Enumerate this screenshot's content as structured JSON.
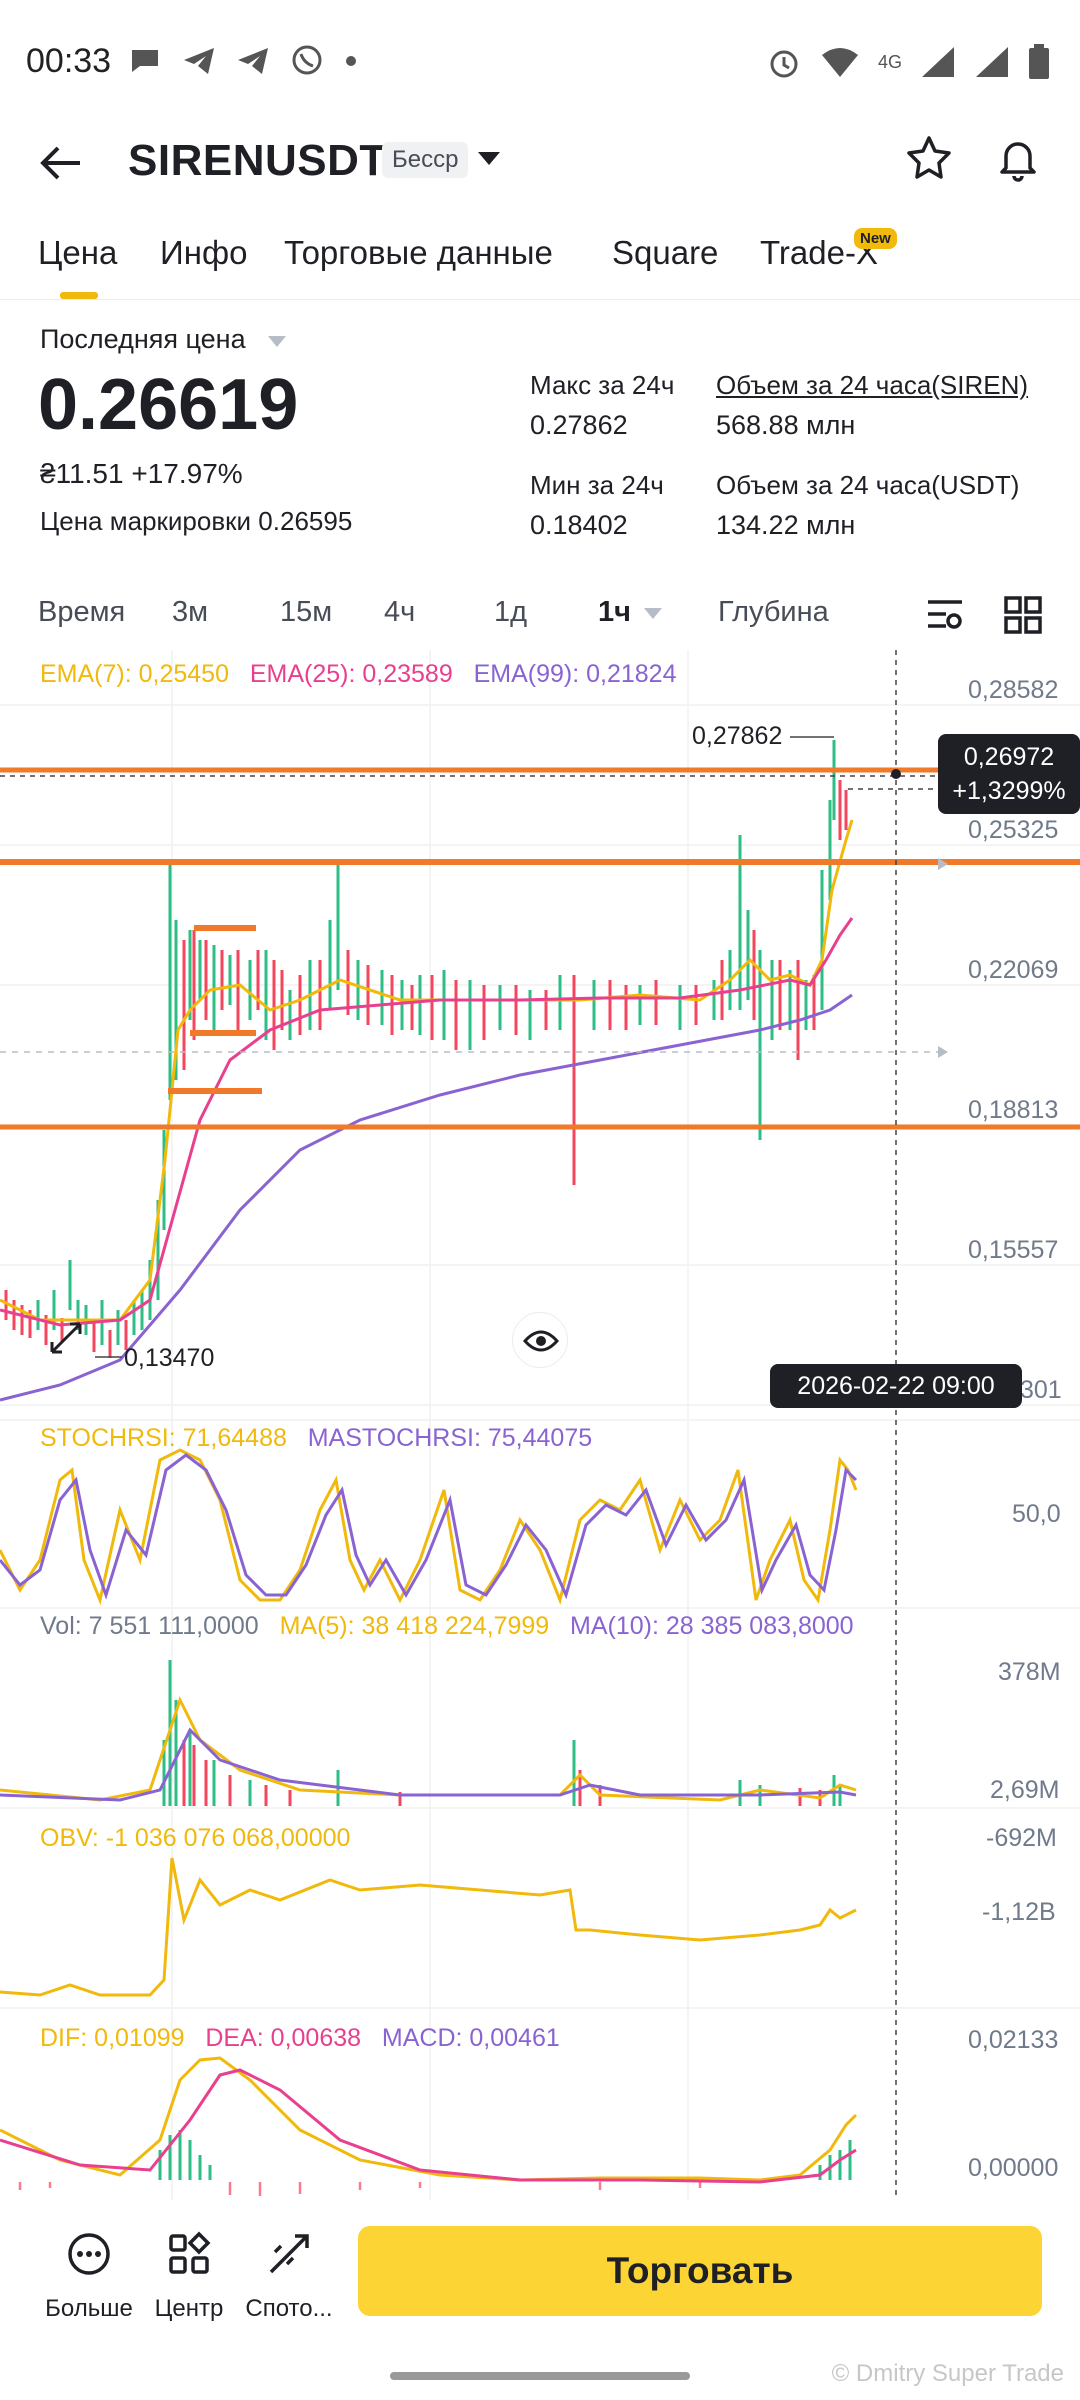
{
  "status_bar": {
    "time": "00:33",
    "network": "4G"
  },
  "header": {
    "pair": "SIRENUSDT",
    "badge": "Бесср"
  },
  "tabs": [
    {
      "label": "Цена"
    },
    {
      "label": "Инфо"
    },
    {
      "label": "Торговые данные"
    },
    {
      "label": "Square"
    },
    {
      "label": "Trade-X"
    }
  ],
  "tab_new_badge": "New",
  "price": {
    "last_label": "Последняя цена",
    "last_value": "0.26619",
    "sub_value": "₴11.51",
    "change": "+17.97%",
    "mark_label": "Цена маркировки",
    "mark_value": "0.26595"
  },
  "stats": {
    "high_label": "Макс за 24ч",
    "high_value": "0.27862",
    "low_label": "Мин за 24ч",
    "low_value": "0.18402",
    "vol_base_label": "Объем за 24 часа(SIREN)",
    "vol_base_value": "568.88 млн",
    "vol_quote_label": "Объем за 24 часа(USDT)",
    "vol_quote_value": "134.22 млн"
  },
  "intervals": {
    "time": "Время",
    "m3": "3м",
    "m15": "15м",
    "h4": "4ч",
    "d1": "1д",
    "selected": "1ч",
    "depth": "Глубина"
  },
  "chart": {
    "ema7": "EMA(7): 0,25450",
    "ema25": "EMA(25): 0,23589",
    "ema99": "EMA(99): 0,21824",
    "price_ticks": [
      "0,28582",
      "0,25325",
      "0,22069",
      "0,18813",
      "0,15557",
      "301"
    ],
    "crosshair_price": "0,26972",
    "crosshair_change": "+1,3299%",
    "high_marker": "0,27862",
    "low_marker": "0,13470",
    "crosshair_time": "2026-02-22 09:00",
    "stochrsi": "STOCHRSI: 71,64488",
    "mastochrsi": "MASTOCHRSI: 75,44075",
    "stoch_tick": "50,0",
    "vol": "Vol: 7 551 111,0000",
    "ma5": "MA(5): 38 418 224,7999",
    "ma10": "MA(10): 28 385 083,8000",
    "vol_ticks": [
      "378M",
      "2,69M"
    ],
    "obv": "OBV: -1 036 076 068,00000",
    "obv_ticks": [
      "-692M",
      "-1,12B"
    ],
    "dif": "DIF: 0,01099",
    "dea": "DEA: 0,00638",
    "macd": "MACD: 0,00461",
    "macd_ticks": [
      "0,02133",
      "0,00000"
    ]
  },
  "colors": {
    "accent": "#f0b90b",
    "ema7": "#f0b90b",
    "ema25": "#e8408f",
    "ema99": "#8a63d2",
    "up": "#2ebd85",
    "down": "#f6465d",
    "drawn_lines": "#f07a2a"
  },
  "bottom_nav": {
    "more": "Больше",
    "center": "Центр",
    "spot": "Спото...",
    "trade": "Торговать"
  },
  "watermark": "© Dmitry Super Trade"
}
